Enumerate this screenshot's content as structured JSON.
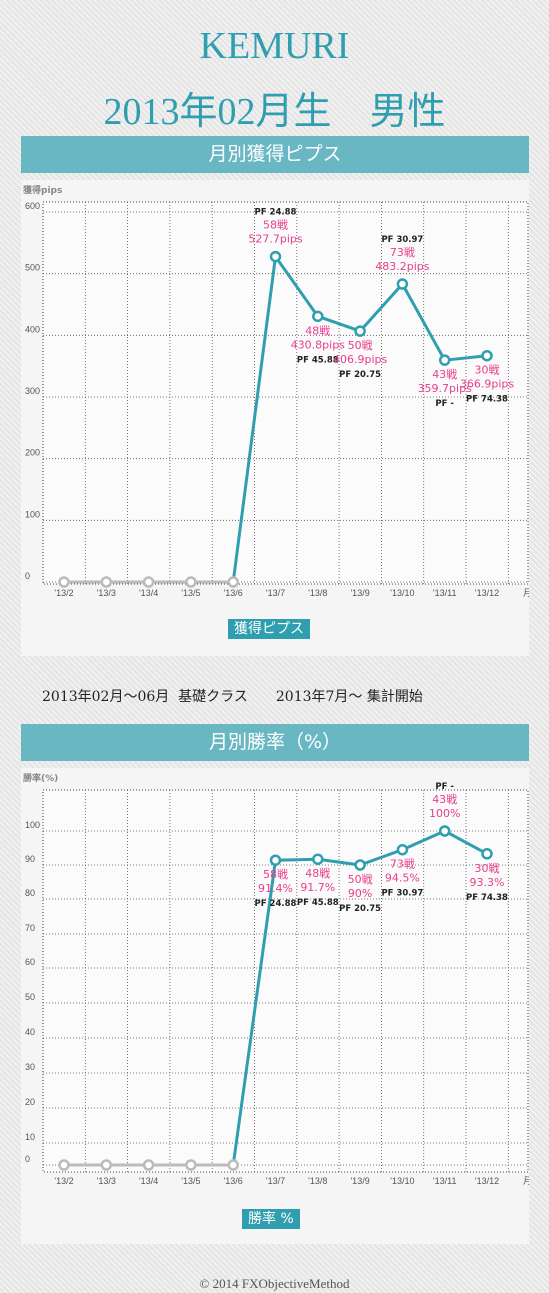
{
  "header": {
    "name": "KEMURI",
    "subtitle": "2013年02月生　男性"
  },
  "colors": {
    "accent": "#2f9fb0",
    "band": "#6ab7c4",
    "annotation": "#e83e8c",
    "inactive": "#bbbbbb"
  },
  "note": "2013年02月～06月  基礎クラス　　2013年7月～ 集計開始",
  "footer": "© 2014 FXObjectiveMethod",
  "chart_data": [
    {
      "type": "line",
      "title": "月別獲得ピプス",
      "ylabel": "獲得pips",
      "xlabel": "月",
      "legend": "獲得ピプス",
      "ylim": [
        0,
        600
      ],
      "yticks": [
        0,
        100,
        200,
        300,
        400,
        500,
        600
      ],
      "categories": [
        "'13/2",
        "'13/3",
        "'13/4",
        "'13/5",
        "'13/6",
        "'13/7",
        "'13/8",
        "'13/9",
        "'13/10",
        "'13/11",
        "'13/12"
      ],
      "values": [
        0,
        0,
        0,
        0,
        0,
        527.7,
        430.8,
        406.9,
        483.2,
        359.7,
        366.9
      ],
      "tracked_from_index": 5,
      "annotations": [
        {
          "i": 5,
          "pf": "PF 24.88",
          "trades": "58戦",
          "value": "527.7pips",
          "pos": "above"
        },
        {
          "i": 6,
          "pf": "PF 45.88",
          "trades": "48戦",
          "value": "430.8pips",
          "pos": "below"
        },
        {
          "i": 7,
          "pf": "PF 20.75",
          "trades": "50戦",
          "value": "406.9pips",
          "pos": "below"
        },
        {
          "i": 8,
          "pf": "PF 30.97",
          "trades": "73戦",
          "value": "483.2pips",
          "pos": "above"
        },
        {
          "i": 9,
          "pf": "PF -",
          "trades": "43戦",
          "value": "359.7pips",
          "pos": "below"
        },
        {
          "i": 10,
          "pf": "PF 74.38",
          "trades": "30戦",
          "value": "366.9pips",
          "pos": "below"
        }
      ]
    },
    {
      "type": "line",
      "title": "月別勝率（%）",
      "ylabel": "勝率(%)",
      "xlabel": "月",
      "legend": "勝率 %",
      "yticks": [
        0,
        10,
        20,
        30,
        40,
        50,
        60,
        70,
        80,
        90,
        100
      ],
      "categories": [
        "'13/2",
        "'13/3",
        "'13/4",
        "'13/5",
        "'13/6",
        "'13/7",
        "'13/8",
        "'13/9",
        "'13/10",
        "'13/11",
        "'13/12"
      ],
      "values": [
        0,
        0,
        0,
        0,
        0,
        91.4,
        91.7,
        90,
        94.5,
        100,
        93.3
      ],
      "tracked_from_index": 5,
      "annotations": [
        {
          "i": 5,
          "pf": "PF 24.88",
          "trades": "58戦",
          "value": "91.4%",
          "pos": "below"
        },
        {
          "i": 6,
          "pf": "PF 45.88",
          "trades": "48戦",
          "value": "91.7%",
          "pos": "below"
        },
        {
          "i": 7,
          "pf": "PF 20.75",
          "trades": "50戦",
          "value": "90%",
          "pos": "below"
        },
        {
          "i": 8,
          "pf": "PF 30.97",
          "trades": "73戦",
          "value": "94.5%",
          "pos": "below"
        },
        {
          "i": 9,
          "pf": "PF -",
          "trades": "43戦",
          "value": "100%",
          "pos": "above"
        },
        {
          "i": 10,
          "pf": "PF 74.38",
          "trades": "30戦",
          "value": "93.3%",
          "pos": "below"
        }
      ]
    }
  ]
}
